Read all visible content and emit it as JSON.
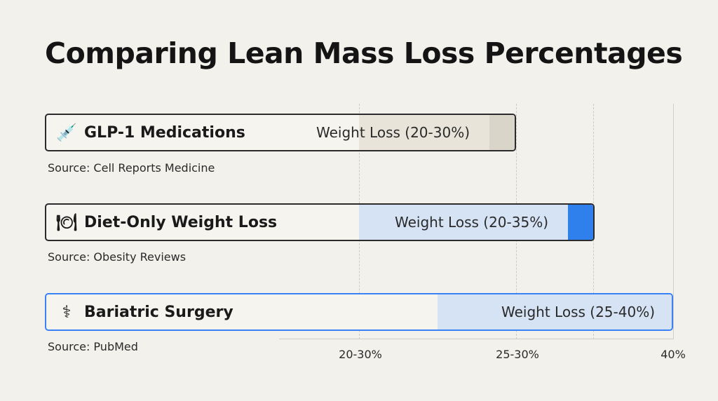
{
  "chart_data": {
    "type": "bar",
    "title": "Comparing Lean Mass Loss Percentages",
    "xlabel": "",
    "ylabel": "",
    "x_ticks": [
      "20-30%",
      "25-30%",
      "40%"
    ],
    "grid": true,
    "legend": "none",
    "series": [
      {
        "category": "GLP-1 Medications",
        "icon": "syringe-icon",
        "range_label": "Weight Loss (20-30%)",
        "range_low": 20,
        "range_high": 30,
        "source": "Source: Cell Reports Medicine",
        "border_color": "#2b2b2b",
        "range_color": "#e8e4da",
        "cap_color": "#d9d5c9"
      },
      {
        "category": "Diet-Only Weight Loss",
        "icon": "food-plate-icon",
        "range_label": "Weight Loss (20-35%)",
        "range_low": 20,
        "range_high": 35,
        "source": "Source: Obesity Reviews",
        "border_color": "#2b2b2b",
        "range_color": "#d6e3f4",
        "cap_color": "#2f80ed"
      },
      {
        "category": "Bariatric Surgery",
        "icon": "caduceus-icon",
        "range_label": "Weight Loss (25-40%)",
        "range_low": 25,
        "range_high": 40,
        "source": "Source: PubMed",
        "border_color": "#3b82f6",
        "range_color": "#d6e3f4",
        "cap_color": ""
      }
    ]
  }
}
